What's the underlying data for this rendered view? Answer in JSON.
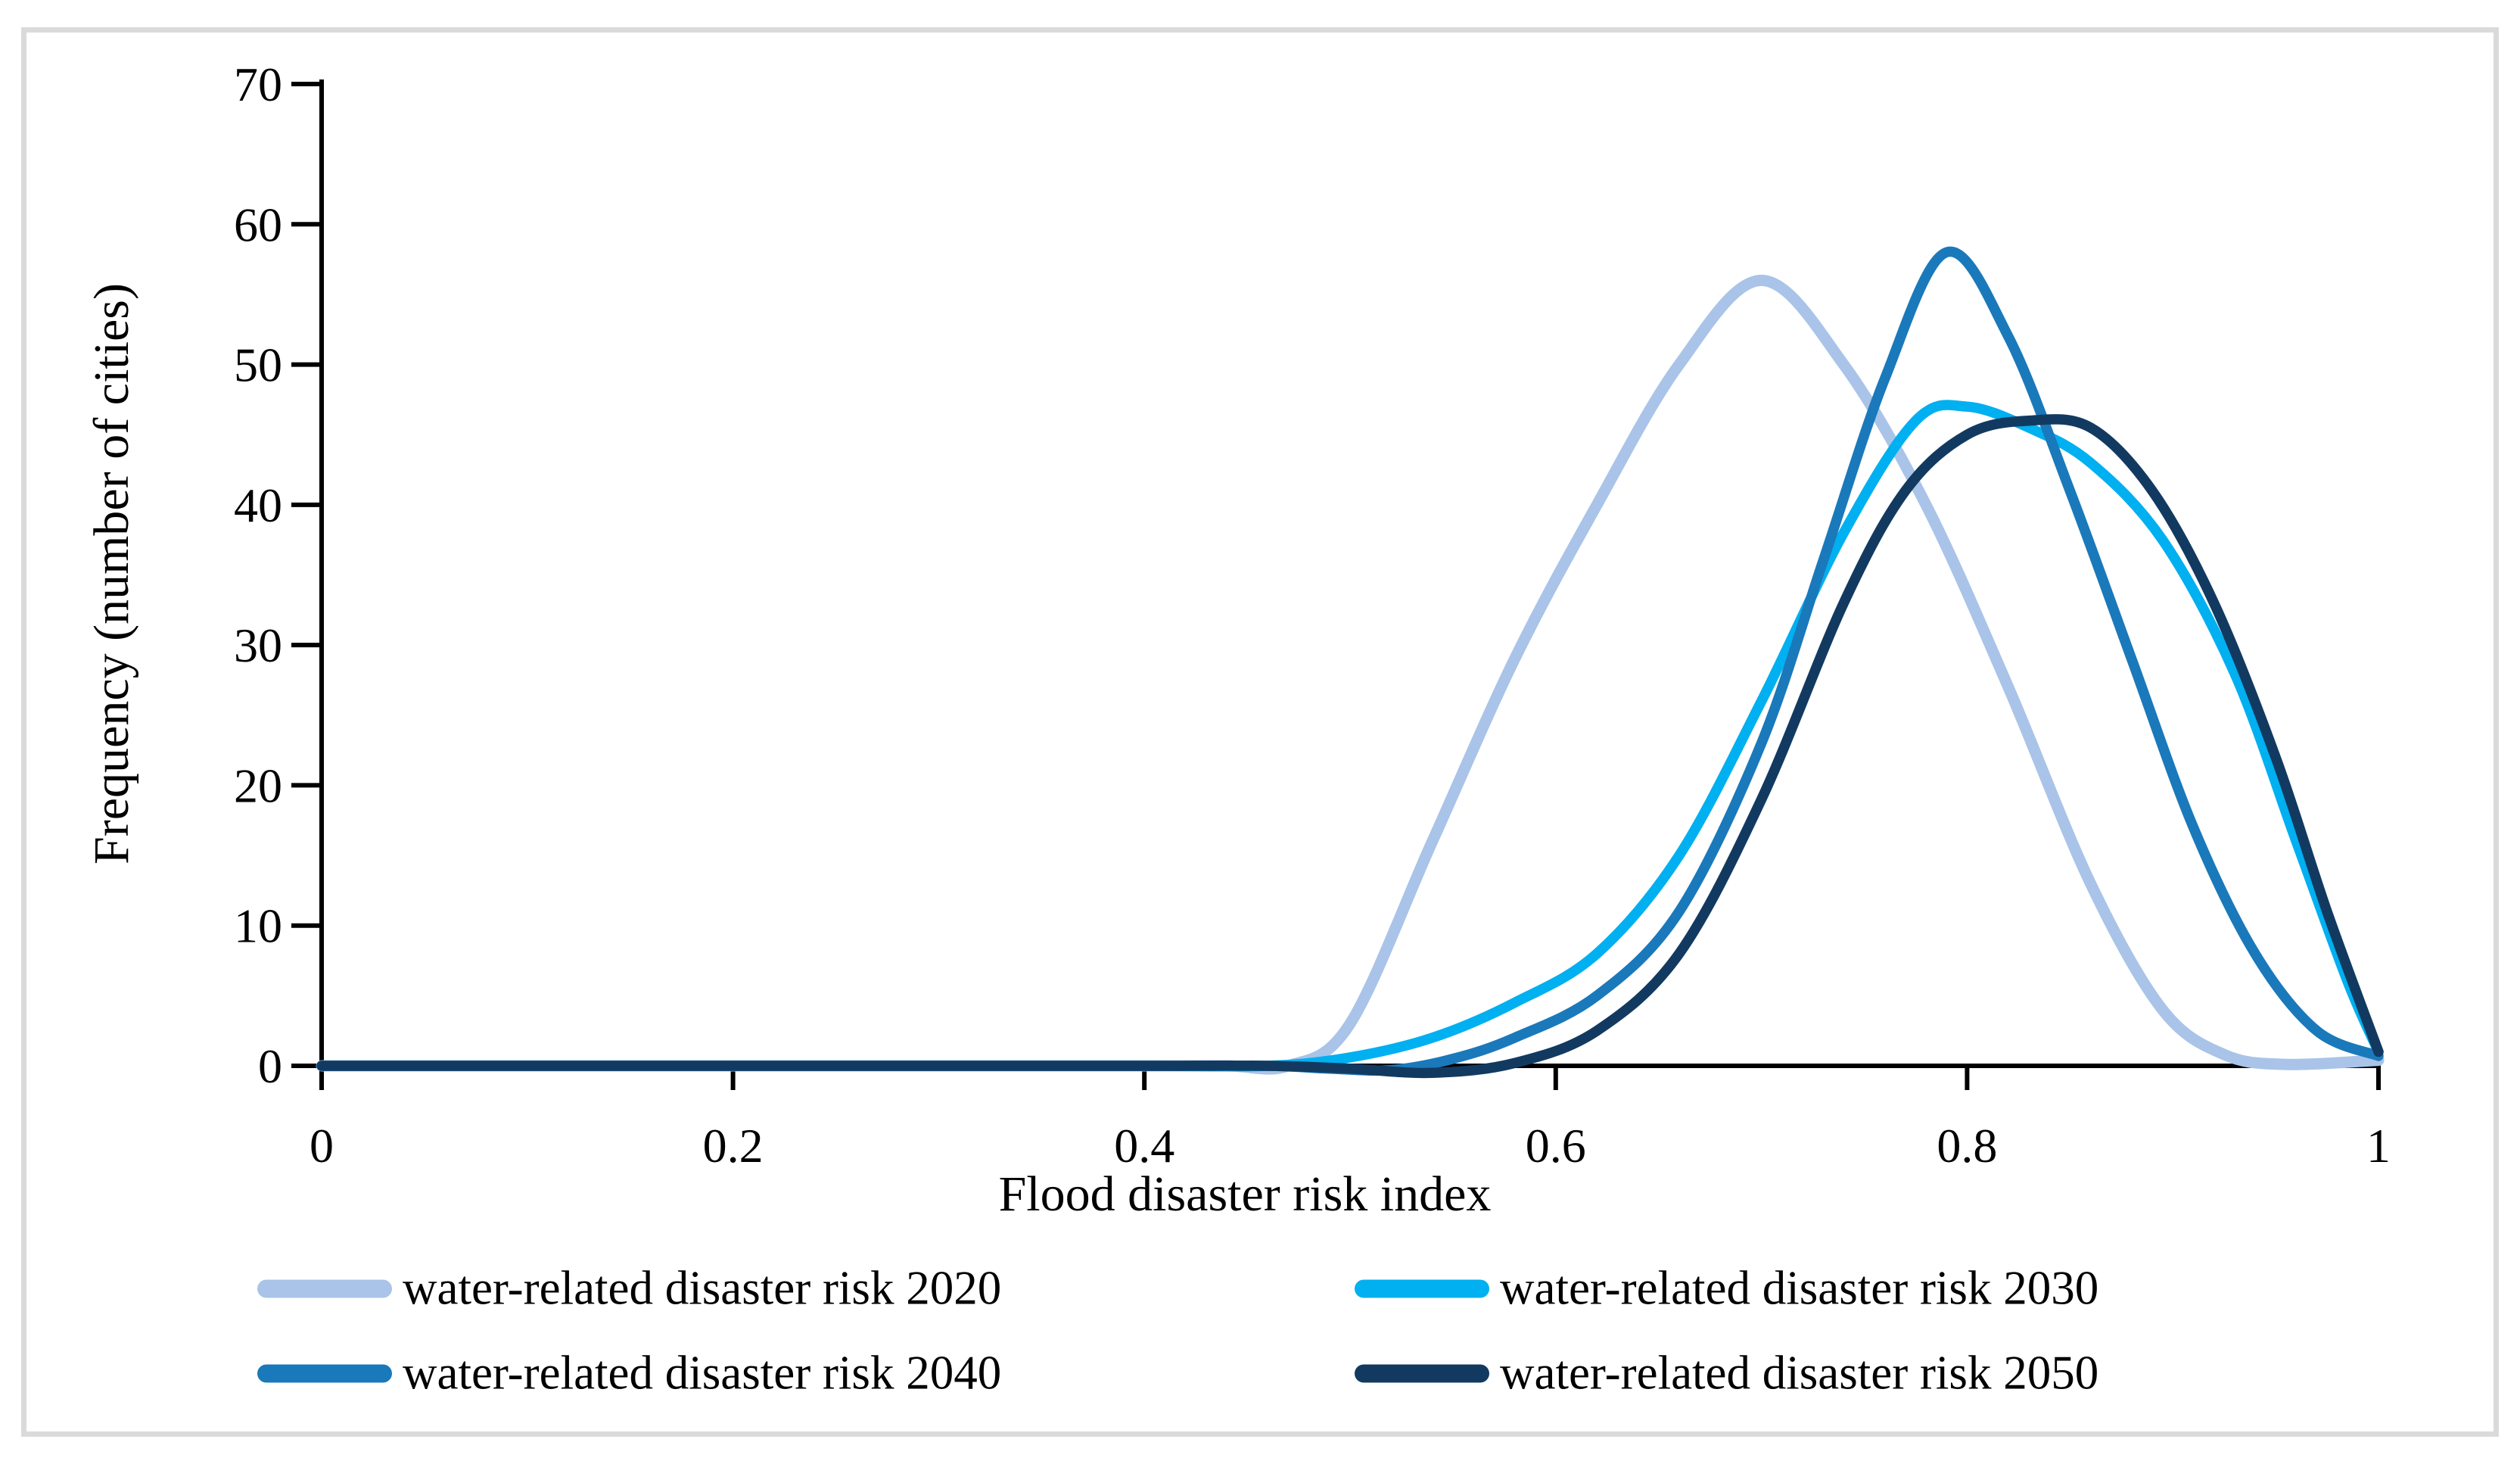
{
  "chart_data": {
    "type": "line",
    "title": "",
    "xlabel": "Flood disaster risk index",
    "ylabel": "Frequency (number of cities)",
    "xlim": [
      0,
      1
    ],
    "ylim": [
      0,
      70
    ],
    "grid": false,
    "legend_position": "bottom",
    "x_ticks": [
      {
        "label": "0",
        "value": 0
      },
      {
        "label": "0.2",
        "value": 0.2
      },
      {
        "label": "0.4",
        "value": 0.4
      },
      {
        "label": "0.6",
        "value": 0.6
      },
      {
        "label": "0.8",
        "value": 0.8
      },
      {
        "label": "1",
        "value": 1
      }
    ],
    "y_ticks": [
      {
        "label": "0",
        "value": 0
      },
      {
        "label": "10",
        "value": 10
      },
      {
        "label": "20",
        "value": 20
      },
      {
        "label": "30",
        "value": 30
      },
      {
        "label": "40",
        "value": 40
      },
      {
        "label": "50",
        "value": 50
      },
      {
        "label": "60",
        "value": 60
      },
      {
        "label": "70",
        "value": 70
      }
    ],
    "axis_color": "#000000",
    "series": [
      {
        "name": "water-related disaster risk 2020",
        "color": "#A9C4E8",
        "peak": {
          "x": 0.7,
          "y": 56
        },
        "points": [
          [
            0,
            0
          ],
          [
            0.1,
            0
          ],
          [
            0.2,
            0
          ],
          [
            0.3,
            0
          ],
          [
            0.4,
            0
          ],
          [
            0.44,
            0
          ],
          [
            0.47,
            0
          ],
          [
            0.5,
            3
          ],
          [
            0.54,
            16
          ],
          [
            0.58,
            29
          ],
          [
            0.62,
            40
          ],
          [
            0.66,
            50
          ],
          [
            0.7,
            56
          ],
          [
            0.74,
            50
          ],
          [
            0.78,
            40
          ],
          [
            0.82,
            27
          ],
          [
            0.86,
            13
          ],
          [
            0.895,
            4
          ],
          [
            0.925,
            0.8
          ],
          [
            0.955,
            0.1
          ],
          [
            1.0,
            0.4
          ]
        ]
      },
      {
        "name": "water-related disaster risk 2030",
        "color": "#00B0F0",
        "peak": {
          "x": 0.785,
          "y": 47
        },
        "points": [
          [
            0,
            0
          ],
          [
            0.1,
            0
          ],
          [
            0.2,
            0
          ],
          [
            0.3,
            0
          ],
          [
            0.4,
            0
          ],
          [
            0.46,
            0
          ],
          [
            0.5,
            0.6
          ],
          [
            0.54,
            2
          ],
          [
            0.58,
            4.5
          ],
          [
            0.62,
            8
          ],
          [
            0.66,
            15
          ],
          [
            0.7,
            26
          ],
          [
            0.74,
            38
          ],
          [
            0.775,
            46
          ],
          [
            0.8,
            47
          ],
          [
            0.83,
            45.5
          ],
          [
            0.86,
            43
          ],
          [
            0.895,
            37.5
          ],
          [
            0.93,
            28
          ],
          [
            0.96,
            16
          ],
          [
            0.985,
            6
          ],
          [
            1.0,
            1
          ]
        ]
      },
      {
        "name": "water-related disaster risk 2040",
        "color": "#1A79BA",
        "peak": {
          "x": 0.79,
          "y": 58
        },
        "points": [
          [
            0,
            0
          ],
          [
            0.1,
            0
          ],
          [
            0.2,
            0
          ],
          [
            0.3,
            0
          ],
          [
            0.4,
            0
          ],
          [
            0.46,
            0
          ],
          [
            0.49,
            -0.2
          ],
          [
            0.52,
            -0.3
          ],
          [
            0.55,
            0.5
          ],
          [
            0.58,
            2
          ],
          [
            0.62,
            5
          ],
          [
            0.66,
            11
          ],
          [
            0.7,
            23
          ],
          [
            0.73,
            36
          ],
          [
            0.76,
            49
          ],
          [
            0.79,
            58
          ],
          [
            0.82,
            52
          ],
          [
            0.85,
            41
          ],
          [
            0.88,
            29
          ],
          [
            0.91,
            17
          ],
          [
            0.94,
            8
          ],
          [
            0.97,
            2.5
          ],
          [
            1.0,
            0.7
          ]
        ]
      },
      {
        "name": "water-related disaster risk 2050",
        "color": "#123A61",
        "peak": {
          "x": 0.83,
          "y": 46
        },
        "points": [
          [
            0,
            0
          ],
          [
            0.1,
            0
          ],
          [
            0.2,
            0
          ],
          [
            0.3,
            0
          ],
          [
            0.4,
            0
          ],
          [
            0.46,
            0
          ],
          [
            0.5,
            -0.2
          ],
          [
            0.54,
            -0.5
          ],
          [
            0.58,
            0.2
          ],
          [
            0.62,
            2.5
          ],
          [
            0.66,
            8
          ],
          [
            0.7,
            19
          ],
          [
            0.74,
            33
          ],
          [
            0.77,
            41
          ],
          [
            0.8,
            45
          ],
          [
            0.83,
            46
          ],
          [
            0.86,
            45.5
          ],
          [
            0.89,
            41
          ],
          [
            0.92,
            33
          ],
          [
            0.95,
            22
          ],
          [
            0.975,
            11
          ],
          [
            1.0,
            1
          ]
        ]
      }
    ]
  },
  "frame": {
    "border_color": "#DADADA"
  }
}
